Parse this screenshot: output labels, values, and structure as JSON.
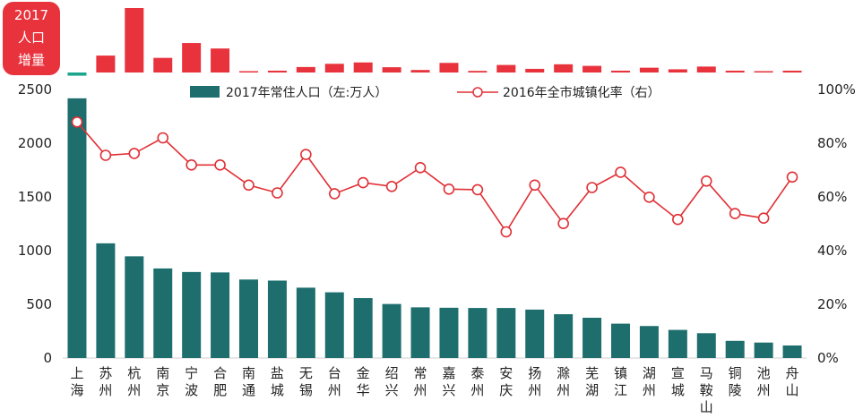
{
  "chart_data": {
    "type": "bar",
    "categories": [
      [
        "上",
        "海"
      ],
      [
        "苏",
        "州"
      ],
      [
        "杭",
        "州"
      ],
      [
        "南",
        "京"
      ],
      [
        "宁",
        "波"
      ],
      [
        "合",
        "肥"
      ],
      [
        "南",
        "通"
      ],
      [
        "盐",
        "城"
      ],
      [
        "无",
        "锡"
      ],
      [
        "台",
        "州"
      ],
      [
        "金",
        "华"
      ],
      [
        "绍",
        "兴"
      ],
      [
        "常",
        "州"
      ],
      [
        "嘉",
        "兴"
      ],
      [
        "泰",
        "州"
      ],
      [
        "安",
        "庆"
      ],
      [
        "扬",
        "州"
      ],
      [
        "滁",
        "州"
      ],
      [
        "芜",
        "湖"
      ],
      [
        "镇",
        "江"
      ],
      [
        "湖",
        "州"
      ],
      [
        "宣",
        "城"
      ],
      [
        "马",
        "鞍",
        "山"
      ],
      [
        "铜",
        "陵"
      ],
      [
        "池",
        "州"
      ],
      [
        "舟",
        "山"
      ]
    ],
    "series": [
      {
        "name": "2017年常住人口（左:万人）",
        "type": "bar",
        "axis": "left",
        "color": "#1f6e6e",
        "values": [
          2418,
          1068,
          947,
          834,
          801,
          797,
          731,
          721,
          655,
          612,
          558,
          503,
          472,
          468,
          466,
          466,
          451,
          408,
          375,
          320,
          298,
          262,
          231,
          160,
          144,
          117
        ]
      },
      {
        "name": "2016年全市城镇化率（右）",
        "type": "line",
        "axis": "right",
        "color": "#e03036",
        "values": [
          87.9,
          75.5,
          76.2,
          82.0,
          71.9,
          71.9,
          64.4,
          61.5,
          75.8,
          61.2,
          65.3,
          63.9,
          70.9,
          62.9,
          62.7,
          47.0,
          64.4,
          50.1,
          63.5,
          69.2,
          59.9,
          51.6,
          65.9,
          53.8,
          52.1,
          67.4
        ]
      },
      {
        "name": "2017人口增量",
        "type": "bar",
        "axis": "top",
        "color": "#e8323c",
        "values": [
          -1.4,
          7.4,
          28.2,
          6.4,
          12.9,
          10.5,
          0.5,
          0.8,
          2.4,
          3.8,
          4.4,
          2.3,
          1.1,
          4.2,
          0.7,
          3.3,
          1.6,
          3.6,
          2.9,
          0.8,
          2.1,
          1.4,
          2.6,
          0.8,
          0.6,
          0.8
        ]
      }
    ],
    "y_left": {
      "ticks": [
        "0",
        "500",
        "1000",
        "1500",
        "2000",
        "2500"
      ],
      "lim": [
        0,
        2500
      ]
    },
    "y_right": {
      "ticks": [
        "0%",
        "20%",
        "40%",
        "60%",
        "80%",
        "100%"
      ],
      "lim": [
        0,
        100
      ]
    },
    "top_panel_label": [
      "2017",
      "人口",
      "增量"
    ],
    "legend_position": "top"
  }
}
